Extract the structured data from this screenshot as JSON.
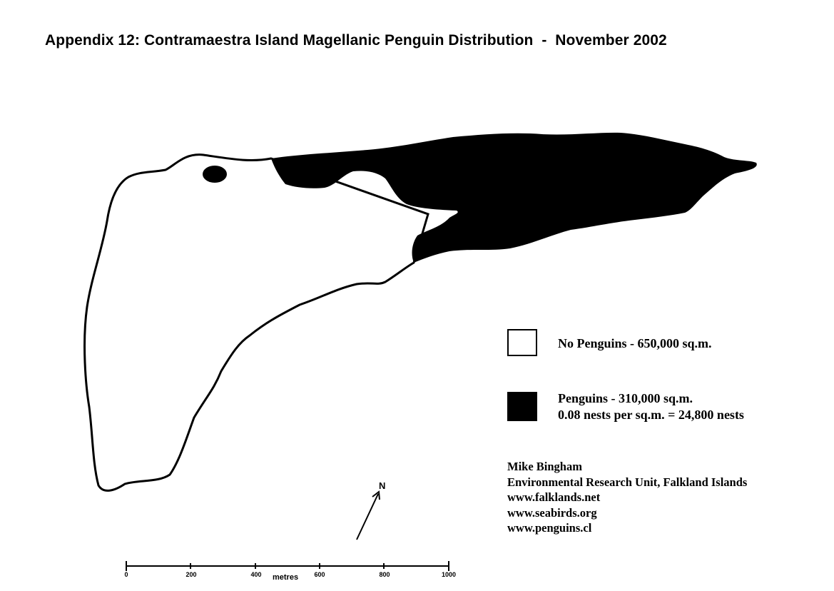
{
  "title": "Appendix 12: Contramaestra Island Magellanic Penguin Distribution  -  November 2002",
  "legend": {
    "no_penguins": "No Penguins - 650,000 sq.m.",
    "penguins": "Penguins - 310,000 sq.m.",
    "density": "0.08 nests per sq.m. = 24,800 nests"
  },
  "credits": [
    "Mike Bingham",
    "Environmental Research Unit, Falkland Islands",
    "www.falklands.net",
    "www.seabirds.org",
    "www.penguins.cl"
  ],
  "scale_bar": {
    "ticks": [
      "0",
      "200",
      "400",
      "600",
      "800",
      "1000"
    ],
    "unit": "metres"
  },
  "north_arrow": {
    "label": "N"
  },
  "colors": {
    "penguin_area": "#000000",
    "no_penguin_area": "#ffffff",
    "outline": "#000000"
  }
}
